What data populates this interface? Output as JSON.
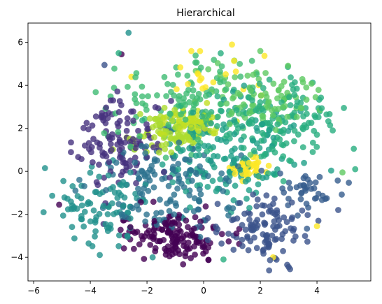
{
  "chart_data": {
    "type": "scatter",
    "title": "Hierarchical",
    "xlabel": "",
    "ylabel": "",
    "xlim": [
      -6.2,
      5.9
    ],
    "ylim": [
      -5.1,
      6.9
    ],
    "xticks": [
      -6,
      -4,
      -2,
      0,
      2,
      4
    ],
    "yticks": [
      -4,
      -2,
      0,
      2,
      4,
      6
    ],
    "xtick_labels": [
      "−6",
      "−4",
      "−2",
      "0",
      "2",
      "4"
    ],
    "ytick_labels": [
      "−4",
      "−2",
      "0",
      "2",
      "4",
      "6"
    ],
    "grid": false,
    "legend": "none",
    "colormap": "viridis",
    "marker_alpha": 0.8,
    "clusters": [
      {
        "color": "#440154",
        "cx": -0.9,
        "cy": -3.1,
        "sx": 0.85,
        "sy": 0.55,
        "n": 150
      },
      {
        "color": "#46327e",
        "cx": -3.1,
        "cy": 1.4,
        "sx": 0.75,
        "sy": 1.0,
        "n": 120
      },
      {
        "color": "#3b528b",
        "cx": 1.9,
        "cy": -2.6,
        "sx": 0.9,
        "sy": 0.7,
        "n": 110
      },
      {
        "color": "#365c8d",
        "cx": 3.6,
        "cy": -1.0,
        "sx": 0.6,
        "sy": 0.45,
        "n": 40
      },
      {
        "color": "#2c728e",
        "cx": -1.3,
        "cy": -0.4,
        "sx": 1.2,
        "sy": 1.1,
        "n": 150
      },
      {
        "color": "#21918c",
        "cx": -3.6,
        "cy": -1.7,
        "sx": 0.8,
        "sy": 0.9,
        "n": 90
      },
      {
        "color": "#1fa088",
        "cx": 0.8,
        "cy": 0.8,
        "sx": 1.4,
        "sy": 1.2,
        "n": 150
      },
      {
        "color": "#28ae80",
        "cx": 2.6,
        "cy": 2.4,
        "sx": 1.3,
        "sy": 1.1,
        "n": 160
      },
      {
        "color": "#3fbc73",
        "cx": -0.6,
        "cy": 3.2,
        "sx": 1.2,
        "sy": 1.0,
        "n": 120
      },
      {
        "color": "#5ec962",
        "cx": 2.0,
        "cy": 3.6,
        "sx": 1.0,
        "sy": 0.9,
        "n": 90
      },
      {
        "color": "#addc30",
        "cx": -1.4,
        "cy": 1.6,
        "sx": 0.6,
        "sy": 0.5,
        "n": 80
      },
      {
        "color": "#c2df23",
        "cx": -0.4,
        "cy": 2.3,
        "sx": 0.5,
        "sy": 0.4,
        "n": 60
      },
      {
        "color": "#fde725",
        "cx": 1.6,
        "cy": 0.1,
        "sx": 0.35,
        "sy": 0.3,
        "n": 40
      },
      {
        "color": "#fde725",
        "cx": 0.3,
        "cy": 4.7,
        "sx": 0.9,
        "sy": 0.6,
        "n": 20
      }
    ],
    "points": [
      {
        "x": -2.65,
        "y": 6.45,
        "color": "#21918c"
      },
      {
        "x": -3.0,
        "y": 5.5,
        "color": "#28ae80"
      },
      {
        "x": -2.9,
        "y": 5.45,
        "color": "#440154"
      },
      {
        "x": -3.5,
        "y": 4.95,
        "color": "#3b528b"
      },
      {
        "x": 1.0,
        "y": 5.9,
        "color": "#fde725"
      },
      {
        "x": 2.0,
        "y": 5.6,
        "color": "#5ec962"
      },
      {
        "x": 2.95,
        "y": -4.35,
        "color": "#3b528b"
      },
      {
        "x": 3.0,
        "y": -4.45,
        "color": "#3b528b"
      },
      {
        "x": 3.05,
        "y": -4.55,
        "color": "#3b528b"
      },
      {
        "x": -5.6,
        "y": 0.15,
        "color": "#21918c"
      },
      {
        "x": -5.65,
        "y": -1.9,
        "color": "#21918c"
      },
      {
        "x": -5.1,
        "y": -1.55,
        "color": "#440154"
      },
      {
        "x": -4.95,
        "y": -0.45,
        "color": "#21918c"
      },
      {
        "x": 5.3,
        "y": 1.05,
        "color": "#28ae80"
      },
      {
        "x": 5.35,
        "y": 0.1,
        "color": "#28ae80"
      },
      {
        "x": 4.9,
        "y": -0.05,
        "color": "#5ec962"
      },
      {
        "x": 4.75,
        "y": -1.8,
        "color": "#3b528b"
      },
      {
        "x": 4.05,
        "y": -2.3,
        "color": "#3b528b"
      },
      {
        "x": 4.0,
        "y": -2.55,
        "color": "#fde725"
      },
      {
        "x": 2.45,
        "y": -4.0,
        "color": "#fde725"
      },
      {
        "x": 0.7,
        "y": -4.1,
        "color": "#28ae80"
      },
      {
        "x": -1.8,
        "y": -4.0,
        "color": "#21918c"
      },
      {
        "x": -2.55,
        "y": 4.4,
        "color": "#fde725"
      },
      {
        "x": 4.1,
        "y": 2.85,
        "color": "#5ec962"
      },
      {
        "x": 4.95,
        "y": 2.95,
        "color": "#28ae80"
      }
    ]
  }
}
